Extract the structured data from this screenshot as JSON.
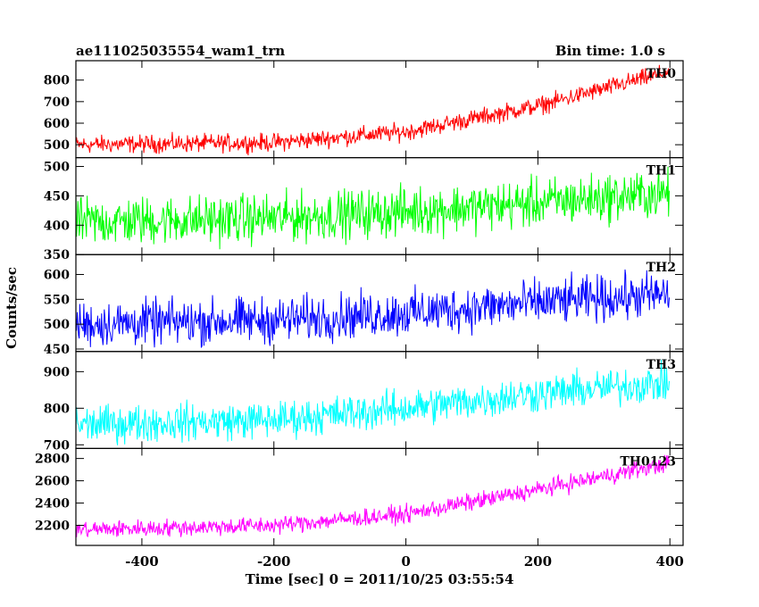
{
  "chart_data": {
    "type": "line",
    "title_left": "ae111025035554_wam1_trn",
    "title_right": "Bin time: 1.0 s",
    "xlabel": "Time [sec] 0 = 2011/10/25 03:55:54",
    "ylabel": "Counts/sec",
    "xlim": [
      -500,
      420
    ],
    "xticks": [
      -400,
      -200,
      0,
      200,
      400
    ],
    "x_range": [
      -500,
      399
    ],
    "panels": [
      {
        "name": "TH0",
        "color": "#ff0000",
        "ylim": [
          440,
          890
        ],
        "yticks": [
          500,
          600,
          700,
          800
        ],
        "trend": [
          [
            -500,
            500
          ],
          [
            -200,
            510
          ],
          [
            0,
            560
          ],
          [
            200,
            680
          ],
          [
            400,
            840
          ]
        ],
        "noise": 45
      },
      {
        "name": "TH1",
        "color": "#00ff00",
        "ylim": [
          350,
          515
        ],
        "yticks": [
          350,
          400,
          450,
          500
        ],
        "trend": [
          [
            -500,
            405
          ],
          [
            -200,
            412
          ],
          [
            0,
            423
          ],
          [
            200,
            438
          ],
          [
            400,
            455
          ]
        ],
        "noise": 45
      },
      {
        "name": "TH2",
        "color": "#0000ff",
        "ylim": [
          445,
          640
        ],
        "yticks": [
          450,
          500,
          550,
          600
        ],
        "trend": [
          [
            -500,
            500
          ],
          [
            -200,
            508
          ],
          [
            0,
            522
          ],
          [
            200,
            543
          ],
          [
            400,
            560
          ]
        ],
        "noise": 50
      },
      {
        "name": "TH3",
        "color": "#00ffff",
        "ylim": [
          690,
          955
        ],
        "yticks": [
          700,
          800,
          900
        ],
        "trend": [
          [
            -500,
            755
          ],
          [
            -200,
            768
          ],
          [
            0,
            800
          ],
          [
            200,
            840
          ],
          [
            400,
            870
          ]
        ],
        "noise": 55
      },
      {
        "name": "TH0123",
        "color": "#ff00ff",
        "ylim": [
          2020,
          2890
        ],
        "yticks": [
          2200,
          2400,
          2600,
          2800
        ],
        "trend": [
          [
            -500,
            2160
          ],
          [
            -200,
            2200
          ],
          [
            0,
            2300
          ],
          [
            200,
            2520
          ],
          [
            400,
            2760
          ]
        ],
        "noise": 85
      }
    ]
  }
}
